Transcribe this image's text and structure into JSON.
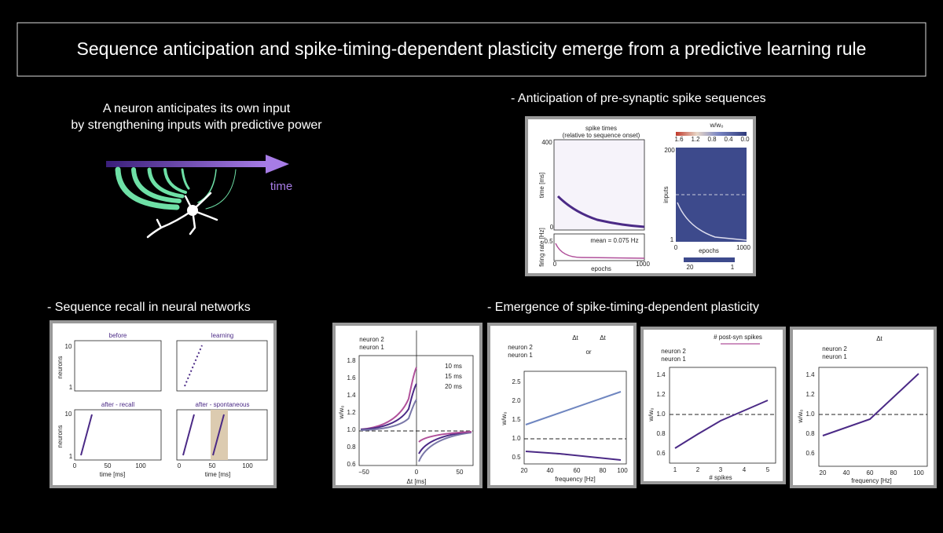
{
  "title": "Sequence anticipation and spike-timing-dependent plasticity emerge from a predictive learning rule",
  "intro": {
    "lines": [
      "A neuron anticipates its own input",
      "by strengthening inputs with predictive power"
    ],
    "arrow_label": "time"
  },
  "sections": [
    {
      "heading": "- Anticipation of pre-synaptic spike sequences",
      "panels": [
        {
          "texts": [
            "spike times",
            "(relative to sequence onset)",
            "400",
            "time [ms]",
            "0",
            "firing rate [Hz]",
            "0.5",
            "mean = 0.075 Hz",
            "0",
            "epochs",
            "1000",
            "w/w₀",
            "1.6",
            "1.2",
            "0.8",
            "0.4",
            "0.0",
            "200",
            "inputs",
            "1",
            "0",
            "epochs",
            "1000",
            "20",
            "1"
          ]
        }
      ]
    },
    {
      "heading": "- Sequence recall in neural networks",
      "panels": [
        {
          "texts": [
            "before",
            "learning",
            "10",
            "neurons",
            "1",
            "after - recall",
            "after - spontaneous",
            "10",
            "neurons",
            "1",
            "0",
            "50",
            "100",
            "time [ms]",
            "0",
            "50",
            "100",
            "time [ms]"
          ]
        }
      ]
    },
    {
      "heading": "- Emergence of spike-timing-dependent plasticity",
      "panels": [
        {
          "texts": [
            "neuron 2",
            "neuron 1",
            "1.8",
            "1.6",
            "1.4",
            "1.2",
            "1.0",
            "0.8",
            "0.6",
            "w/w₀",
            "10 ms",
            "15 ms",
            "20 ms",
            "−50",
            "0",
            "50",
            "Δt [ms]"
          ]
        },
        {
          "texts": [
            "Δt",
            "Δt",
            "neuron 2",
            "neuron 1",
            "or",
            "2.5",
            "2.0",
            "1.5",
            "1.0",
            "0.5",
            "w/w₀",
            "20",
            "40",
            "60",
            "80",
            "100",
            "frequency [Hz]"
          ]
        },
        {
          "texts": [
            "# post-syn spikes",
            "neuron 2",
            "neuron 1",
            "1.4",
            "1.2",
            "1.0",
            "0.8",
            "0.6",
            "w/w₀",
            "1",
            "2",
            "3",
            "4",
            "5",
            "# spikes"
          ]
        },
        {
          "texts": [
            "Δt",
            "neuron 2",
            "neuron 1",
            "1.4",
            "1.2",
            "1.0",
            "0.8",
            "0.6",
            "w/w₀",
            "20",
            "40",
            "60",
            "80",
            "100",
            "frequency [Hz]"
          ]
        }
      ]
    }
  ]
}
